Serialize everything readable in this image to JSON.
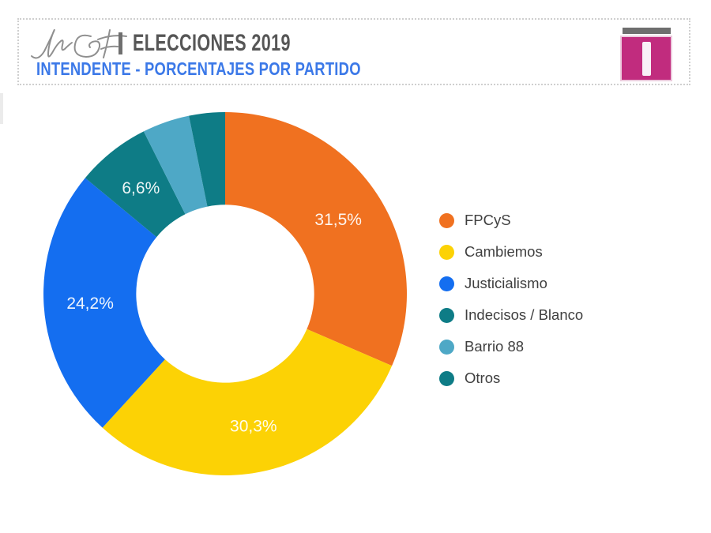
{
  "header": {
    "divider": "|",
    "title": "ELECCIONES 2019",
    "subtitle": "INTENDENTE - PORCENTAJES POR PARTIDO",
    "title_color": "#565656",
    "subtitle_color": "#3C79E8",
    "signature": "JMGF"
  },
  "logo": {
    "glyph": "I",
    "square_color": "#C12C7E",
    "bar_color": "#6E6E6E"
  },
  "chart_data": {
    "type": "pie",
    "subtype": "donut",
    "title": "INTENDENTE - PORCENTAJES POR PARTIDO",
    "categories": [
      "FPCyS",
      "Cambiemos",
      "Justicialismo",
      "Indecisos / Blanco",
      "Barrio 88",
      "Otros"
    ],
    "values": [
      31.5,
      30.3,
      24.2,
      6.6,
      4.2,
      3.2
    ],
    "slice_labels": [
      "31,5%",
      "30,3%",
      "24,2%",
      "6,6%",
      "",
      ""
    ],
    "colors": [
      "#F07120",
      "#FCD205",
      "#146EF0",
      "#0E7C86",
      "#4EA8C6",
      "#0E7C86"
    ],
    "legend_position": "right",
    "start_angle": 0,
    "direction": "clockwise",
    "inner_radius_ratio": 0.49,
    "label_color": "#FFFFFF",
    "label_font_size": 21
  }
}
